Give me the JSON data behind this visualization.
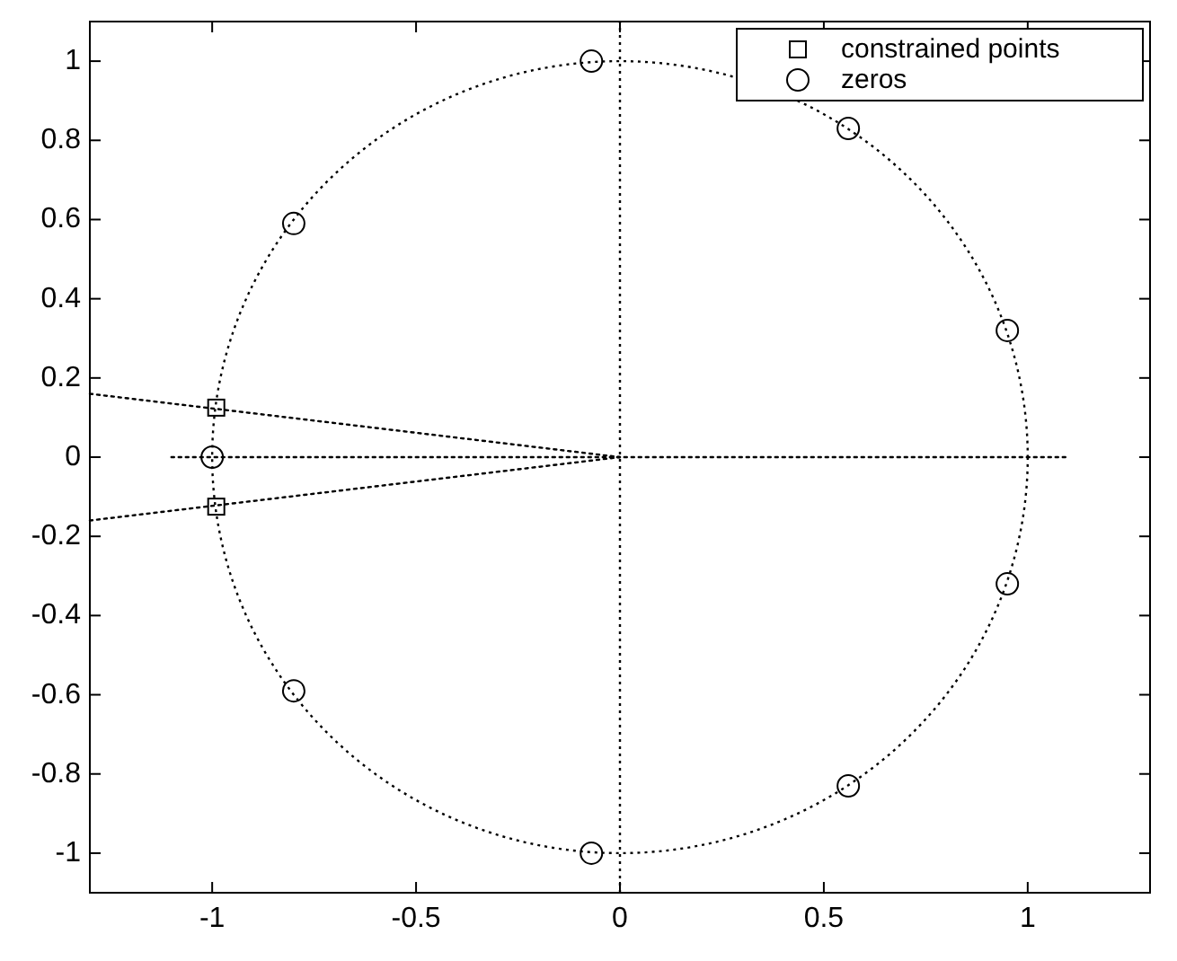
{
  "chart_data": {
    "type": "line",
    "xlim": [
      -1.3,
      1.3
    ],
    "ylim": [
      -1.1,
      1.1
    ],
    "xticks": [
      -1,
      -0.5,
      0,
      0.5,
      1
    ],
    "yticks": [
      -1,
      -0.8,
      -0.6,
      -0.4,
      -0.2,
      0,
      0.2,
      0.4,
      0.6,
      0.8,
      1
    ],
    "grid": false,
    "legend": "top right",
    "ref_lines": [
      {
        "axis": "x",
        "value": 0,
        "color": "#000000",
        "line_style": "dotted"
      }
    ],
    "series": [
      {
        "line_style": "dotted",
        "color": "#000000",
        "x": [
          -1.1,
          1.1
        ],
        "values": [
          0,
          0
        ]
      },
      {
        "line_style": "dotted",
        "color": "#000000",
        "x": [
          -1.3,
          0
        ],
        "values": [
          0.16,
          0
        ]
      },
      {
        "line_style": "dotted",
        "color": "#000000",
        "x": [
          -1.3,
          0
        ],
        "values": [
          -0.16,
          0
        ]
      },
      {
        "type": "scatter",
        "name": "constrained points",
        "marker": "square",
        "color": "#000000",
        "x": [
          -0.99,
          -0.99
        ],
        "values": [
          0.125,
          -0.125
        ]
      },
      {
        "type": "scatter",
        "name": "zeros",
        "marker": "circle",
        "color": "#000000",
        "x": [
          -0.07,
          -0.8,
          -1,
          -0.8,
          -0.07,
          0.56,
          0.95,
          0.95,
          0.56
        ],
        "values": [
          1,
          0.59,
          0,
          -0.59,
          -1,
          0.83,
          0.32,
          -0.32,
          -0.83
        ]
      }
    ]
  }
}
